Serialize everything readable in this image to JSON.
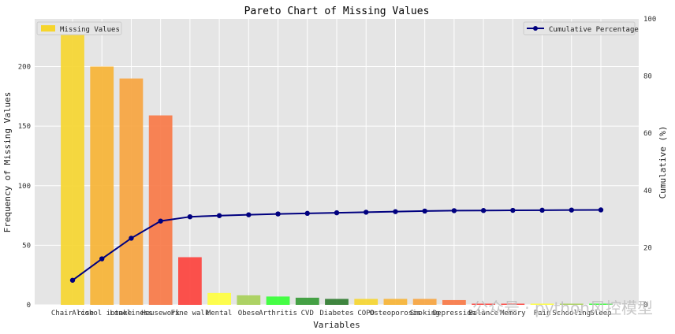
{
  "chart_data": {
    "type": "bar",
    "title": "Pareto Chart of Missing Values",
    "xlabel": "Variables",
    "ylabel": "Frequency of Missing Values",
    "y2label": "Cumulative (%)",
    "ylim": [
      0,
      240
    ],
    "y2lim": [
      0,
      100
    ],
    "yticks": [
      0,
      50,
      100,
      150,
      200
    ],
    "y2ticks": [
      0,
      20,
      40,
      60,
      80,
      100
    ],
    "grid": true,
    "categories": [
      "Chair rise",
      "Alcohol intake",
      "Loneliness",
      "Housework",
      "Fine walk",
      "Mental",
      "Obese",
      "Arthritis",
      "CVD",
      "Diabetes",
      "COPD",
      "Osteoporosis",
      "Smoking",
      "Depression",
      "Balance",
      "Memory",
      "Pain",
      "Schooling",
      "Sleep"
    ],
    "series": [
      {
        "name": "Missing Values",
        "kind": "bar",
        "values": [
          229,
          200,
          190,
          159,
          40,
          10,
          8,
          7,
          6,
          5,
          5,
          5,
          5,
          4,
          1,
          1,
          1,
          1,
          1
        ],
        "colors": [
          "#f6d52c",
          "#f7b332",
          "#f7a33c",
          "#f87744",
          "#fd3f3a",
          "#ffff3c",
          "#a6cf55",
          "#33ff33",
          "#339933",
          "#2c7a2c",
          "#f6d52c",
          "#f7b332",
          "#f7a33c",
          "#f87744",
          "#fd3f3a",
          "#fd3f3a",
          "#ffff3c",
          "#a6cf55",
          "#33ff33"
        ]
      },
      {
        "name": "Cumulative Percentage",
        "kind": "line",
        "values": [
          8.6,
          16.1,
          23.3,
          29.3,
          30.8,
          31.2,
          31.5,
          31.8,
          32.0,
          32.2,
          32.4,
          32.6,
          32.8,
          32.95,
          33.0,
          33.05,
          33.1,
          33.15,
          33.2
        ],
        "color": "#00007f"
      }
    ],
    "legend": [
      "top-left",
      "top-right"
    ]
  },
  "watermark": "公众号 · python风控模型"
}
